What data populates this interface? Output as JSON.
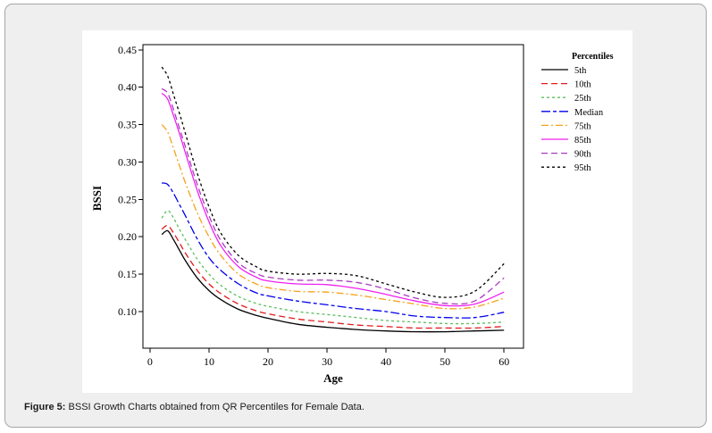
{
  "figure": {
    "caption_label": "Figure 5:",
    "caption_text": "BSSI Growth Charts obtained from QR Percentiles for Female Data."
  },
  "chart_data": {
    "type": "line",
    "xlabel": "Age",
    "ylabel": "BSSI",
    "xlim": [
      -1.2,
      63.3
    ],
    "ylim": [
      0.051,
      0.457
    ],
    "xticks": [
      0,
      10,
      20,
      30,
      40,
      50,
      60
    ],
    "xtick_labels": [
      "0",
      "10",
      "20",
      "30",
      "40",
      "50",
      "60"
    ],
    "yticks": [
      0.1,
      0.15,
      0.2,
      0.25,
      0.3,
      0.35,
      0.4,
      0.45
    ],
    "ytick_labels": [
      "0.10",
      "0.15",
      "0.20",
      "0.25",
      "0.30",
      "0.35",
      "0.40",
      "0.45"
    ],
    "grid": false,
    "legend": {
      "title": "Percentiles",
      "position": "right"
    },
    "x": [
      2,
      3,
      4,
      5,
      6,
      8,
      10,
      12,
      15,
      18,
      20,
      25,
      30,
      35,
      40,
      45,
      50,
      55,
      60
    ],
    "series": [
      {
        "name": "5th",
        "color": "#000000",
        "line_style": "solid",
        "values": [
          0.203,
          0.208,
          0.196,
          0.182,
          0.168,
          0.145,
          0.128,
          0.116,
          0.103,
          0.095,
          0.091,
          0.083,
          0.079,
          0.076,
          0.074,
          0.073,
          0.073,
          0.074,
          0.075
        ]
      },
      {
        "name": "10th",
        "color": "#e31a1c",
        "line_style": "dashed",
        "values": [
          0.21,
          0.215,
          0.205,
          0.192,
          0.178,
          0.155,
          0.137,
          0.124,
          0.11,
          0.101,
          0.097,
          0.09,
          0.086,
          0.082,
          0.08,
          0.078,
          0.078,
          0.078,
          0.08
        ]
      },
      {
        "name": "25th",
        "color": "#5cbf5c",
        "line_style": "short-dashed",
        "values": [
          0.225,
          0.235,
          0.225,
          0.21,
          0.196,
          0.17,
          0.15,
          0.135,
          0.12,
          0.111,
          0.107,
          0.1,
          0.096,
          0.092,
          0.088,
          0.086,
          0.084,
          0.084,
          0.086
        ]
      },
      {
        "name": "Median",
        "color": "#0000ee",
        "line_style": "long-short-dashed",
        "values": [
          0.272,
          0.27,
          0.258,
          0.243,
          0.228,
          0.197,
          0.172,
          0.155,
          0.137,
          0.125,
          0.121,
          0.114,
          0.109,
          0.104,
          0.1,
          0.094,
          0.092,
          0.092,
          0.099
        ]
      },
      {
        "name": "75th",
        "color": "#f7a11a",
        "line_style": "dash-dot",
        "values": [
          0.35,
          0.34,
          0.318,
          0.295,
          0.272,
          0.232,
          0.2,
          0.175,
          0.15,
          0.137,
          0.132,
          0.127,
          0.126,
          0.122,
          0.116,
          0.11,
          0.104,
          0.106,
          0.118
        ]
      },
      {
        "name": "85th",
        "color": "#f020f0",
        "line_style": "solid",
        "values": [
          0.392,
          0.384,
          0.362,
          0.338,
          0.312,
          0.262,
          0.22,
          0.188,
          0.16,
          0.146,
          0.141,
          0.137,
          0.136,
          0.131,
          0.123,
          0.114,
          0.108,
          0.11,
          0.126
        ]
      },
      {
        "name": "90th",
        "color": "#a83cc0",
        "line_style": "dashed",
        "values": [
          0.398,
          0.392,
          0.37,
          0.345,
          0.32,
          0.27,
          0.228,
          0.195,
          0.165,
          0.151,
          0.146,
          0.142,
          0.142,
          0.139,
          0.13,
          0.118,
          0.111,
          0.114,
          0.145
        ]
      },
      {
        "name": "95th",
        "color": "#000000",
        "line_style": "short-dashed",
        "values": [
          0.427,
          0.415,
          0.39,
          0.365,
          0.338,
          0.285,
          0.24,
          0.205,
          0.175,
          0.16,
          0.154,
          0.15,
          0.151,
          0.148,
          0.137,
          0.126,
          0.119,
          0.127,
          0.164
        ]
      }
    ]
  }
}
